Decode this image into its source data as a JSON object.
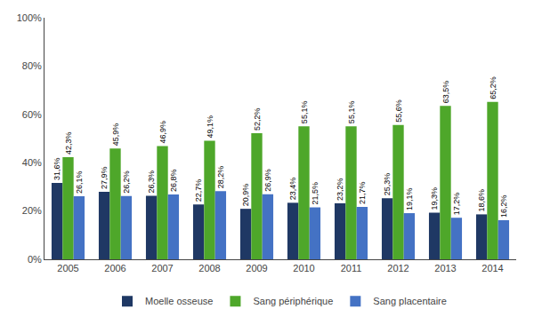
{
  "chart_data": {
    "type": "bar",
    "categories": [
      "2005",
      "2006",
      "2007",
      "2008",
      "2009",
      "2010",
      "2011",
      "2012",
      "2013",
      "2014"
    ],
    "series": [
      {
        "name": "Moelle osseuse",
        "color": "#1F3864",
        "values": [
          31.6,
          27.9,
          26.3,
          22.7,
          20.9,
          23.4,
          23.2,
          25.3,
          19.3,
          18.6
        ],
        "value_labels": [
          "31,6%",
          "27,9%",
          "26,3%",
          "22,7%",
          "20,9%",
          "23,4%",
          "23,2%",
          "25,3%",
          "19,3%",
          "18,6%"
        ]
      },
      {
        "name": "Sang périphérique",
        "color": "#4EA72A",
        "values": [
          42.3,
          45.9,
          46.9,
          49.1,
          52.2,
          55.1,
          55.1,
          55.6,
          63.5,
          65.2
        ],
        "value_labels": [
          "42,3%",
          "45,9%",
          "46,9%",
          "49,1%",
          "52,2%",
          "55,1%",
          "55,1%",
          "55,6%",
          "63,5%",
          "65,2%"
        ]
      },
      {
        "name": "Sang placentaire",
        "color": "#4472C4",
        "values": [
          26.1,
          26.2,
          26.8,
          28.2,
          26.9,
          21.5,
          21.7,
          19.1,
          17.2,
          16.2
        ],
        "value_labels": [
          "26,1%",
          "26,2%",
          "26,8%",
          "28,2%",
          "26,9%",
          "21,5%",
          "21,7%",
          "19,1%",
          "17,2%",
          "16,2%"
        ]
      }
    ],
    "ylim": [
      0,
      100
    ],
    "yticks": [
      {
        "value": 0,
        "label": "0%"
      },
      {
        "value": 20,
        "label": "20%"
      },
      {
        "value": 40,
        "label": "40%"
      },
      {
        "value": 60,
        "label": "60%"
      },
      {
        "value": 80,
        "label": "80%"
      },
      {
        "value": 100,
        "label": "100%"
      }
    ],
    "grid": false,
    "legend": "bottom",
    "data_labels": true
  }
}
